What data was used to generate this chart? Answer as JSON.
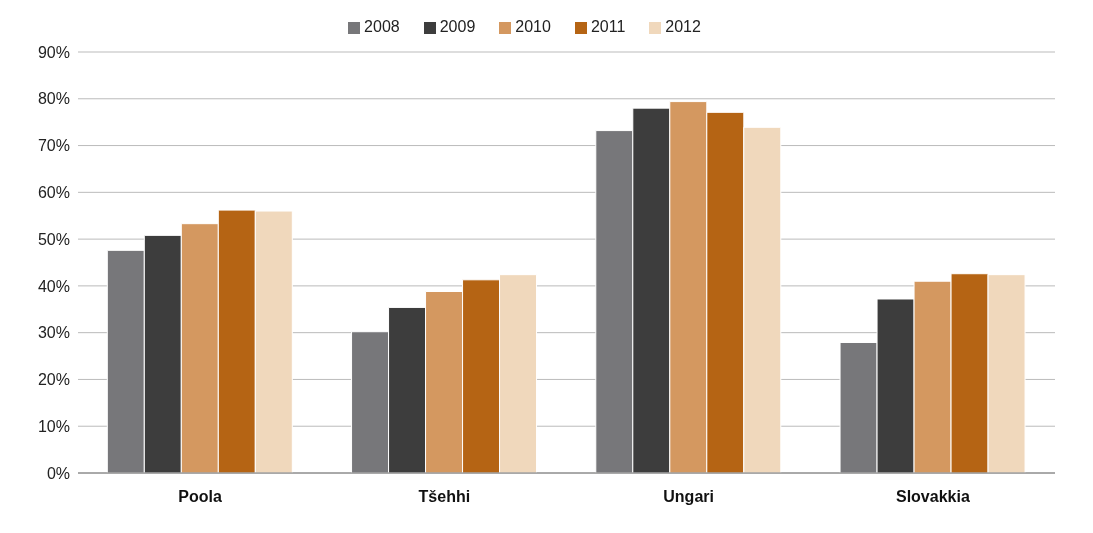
{
  "chart_data": {
    "type": "bar",
    "categories": [
      "Poola",
      "Tšehhi",
      "Ungari",
      "Slovakkia"
    ],
    "series": [
      {
        "name": "2008",
        "color": "#77777a",
        "values": [
          47.6,
          30.2,
          73.2,
          27.9
        ]
      },
      {
        "name": "2009",
        "color": "#3d3d3d",
        "values": [
          50.8,
          35.4,
          78.0,
          37.2
        ]
      },
      {
        "name": "2010",
        "color": "#d49860",
        "values": [
          53.3,
          38.8,
          79.4,
          41.0
        ]
      },
      {
        "name": "2011",
        "color": "#b56414",
        "values": [
          56.2,
          41.3,
          77.1,
          42.6
        ]
      },
      {
        "name": "2012",
        "color": "#f0d8bc",
        "values": [
          56.0,
          42.4,
          73.9,
          42.4
        ]
      }
    ],
    "ylim": [
      0,
      90
    ],
    "yticks": [
      {
        "value": 0,
        "label": "0%"
      },
      {
        "value": 10,
        "label": "10%"
      },
      {
        "value": 20,
        "label": "20%"
      },
      {
        "value": 30,
        "label": "30%"
      },
      {
        "value": 40,
        "label": "40%"
      },
      {
        "value": 50,
        "label": "50%"
      },
      {
        "value": 60,
        "label": "60%"
      },
      {
        "value": 70,
        "label": "70%"
      },
      {
        "value": 80,
        "label": "80%"
      },
      {
        "value": 90,
        "label": "90%"
      }
    ],
    "grid": "y",
    "legend": "top"
  }
}
